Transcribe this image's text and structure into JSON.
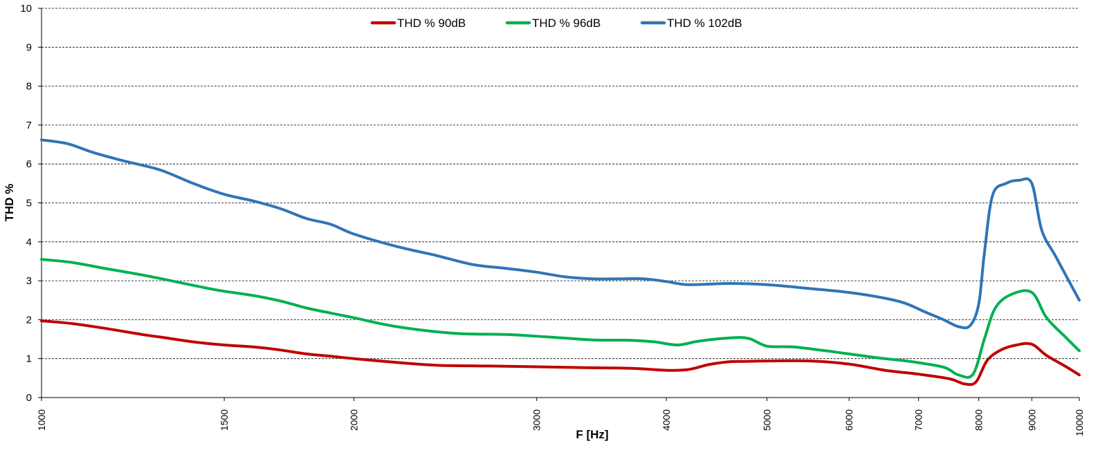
{
  "chart_data": {
    "type": "line",
    "title": "",
    "xlabel": "F [Hz]",
    "ylabel": "THD %",
    "x_scale": "log",
    "xlim": [
      1000,
      10000
    ],
    "ylim": [
      0,
      10
    ],
    "y_ticks": [
      "0",
      "1",
      "2",
      "3",
      "4",
      "5",
      "6",
      "7",
      "8",
      "9",
      "10"
    ],
    "x_ticks": [
      "1000",
      "1500",
      "2000",
      "3000",
      "4000",
      "5000",
      "6000",
      "7000",
      "8000",
      "9000",
      "10000"
    ],
    "grid": "horizontal dashed",
    "legend_position": "top-center",
    "series": [
      {
        "name": "THD % 90dB",
        "color": "#c00000",
        "points": [
          [
            1000,
            1.97
          ],
          [
            1070,
            1.9
          ],
          [
            1150,
            1.78
          ],
          [
            1250,
            1.62
          ],
          [
            1320,
            1.53
          ],
          [
            1400,
            1.43
          ],
          [
            1500,
            1.35
          ],
          [
            1600,
            1.3
          ],
          [
            1700,
            1.22
          ],
          [
            1800,
            1.12
          ],
          [
            1900,
            1.06
          ],
          [
            2000,
            1.0
          ],
          [
            2200,
            0.9
          ],
          [
            2400,
            0.83
          ],
          [
            2700,
            0.81
          ],
          [
            3000,
            0.79
          ],
          [
            3300,
            0.77
          ],
          [
            3700,
            0.75
          ],
          [
            4000,
            0.7
          ],
          [
            4200,
            0.72
          ],
          [
            4400,
            0.85
          ],
          [
            4600,
            0.92
          ],
          [
            4800,
            0.93
          ],
          [
            5000,
            0.94
          ],
          [
            5500,
            0.94
          ],
          [
            6000,
            0.86
          ],
          [
            6500,
            0.7
          ],
          [
            7000,
            0.6
          ],
          [
            7500,
            0.48
          ],
          [
            7750,
            0.35
          ],
          [
            7950,
            0.4
          ],
          [
            8150,
            0.95
          ],
          [
            8400,
            1.22
          ],
          [
            8700,
            1.35
          ],
          [
            9000,
            1.37
          ],
          [
            9300,
            1.08
          ],
          [
            9700,
            0.8
          ],
          [
            10000,
            0.58
          ]
        ]
      },
      {
        "name": "THD % 96dB",
        "color": "#00b050",
        "points": [
          [
            1000,
            3.55
          ],
          [
            1070,
            3.47
          ],
          [
            1150,
            3.32
          ],
          [
            1250,
            3.15
          ],
          [
            1350,
            2.97
          ],
          [
            1450,
            2.8
          ],
          [
            1500,
            2.73
          ],
          [
            1600,
            2.62
          ],
          [
            1700,
            2.48
          ],
          [
            1800,
            2.3
          ],
          [
            1900,
            2.17
          ],
          [
            2000,
            2.05
          ],
          [
            2200,
            1.82
          ],
          [
            2500,
            1.65
          ],
          [
            2800,
            1.62
          ],
          [
            3100,
            1.55
          ],
          [
            3400,
            1.48
          ],
          [
            3700,
            1.47
          ],
          [
            3900,
            1.43
          ],
          [
            4100,
            1.35
          ],
          [
            4300,
            1.45
          ],
          [
            4600,
            1.53
          ],
          [
            4800,
            1.52
          ],
          [
            5000,
            1.32
          ],
          [
            5300,
            1.3
          ],
          [
            5700,
            1.2
          ],
          [
            6000,
            1.12
          ],
          [
            6400,
            1.02
          ],
          [
            6900,
            0.92
          ],
          [
            7400,
            0.78
          ],
          [
            7650,
            0.58
          ],
          [
            7900,
            0.6
          ],
          [
            8100,
            1.5
          ],
          [
            8300,
            2.3
          ],
          [
            8600,
            2.65
          ],
          [
            9000,
            2.7
          ],
          [
            9300,
            2.05
          ],
          [
            9700,
            1.55
          ],
          [
            10000,
            1.2
          ]
        ]
      },
      {
        "name": "THD % 102dB",
        "color": "#2e75b6",
        "points": [
          [
            1000,
            6.62
          ],
          [
            1060,
            6.52
          ],
          [
            1120,
            6.3
          ],
          [
            1200,
            6.08
          ],
          [
            1300,
            5.85
          ],
          [
            1400,
            5.5
          ],
          [
            1500,
            5.22
          ],
          [
            1600,
            5.05
          ],
          [
            1700,
            4.85
          ],
          [
            1800,
            4.6
          ],
          [
            1900,
            4.45
          ],
          [
            2000,
            4.2
          ],
          [
            2200,
            3.88
          ],
          [
            2400,
            3.65
          ],
          [
            2600,
            3.42
          ],
          [
            2800,
            3.32
          ],
          [
            3000,
            3.22
          ],
          [
            3200,
            3.1
          ],
          [
            3400,
            3.05
          ],
          [
            3600,
            3.05
          ],
          [
            3800,
            3.05
          ],
          [
            4000,
            2.98
          ],
          [
            4200,
            2.9
          ],
          [
            4600,
            2.93
          ],
          [
            5000,
            2.9
          ],
          [
            5500,
            2.8
          ],
          [
            6000,
            2.7
          ],
          [
            6500,
            2.55
          ],
          [
            6800,
            2.42
          ],
          [
            7100,
            2.2
          ],
          [
            7400,
            2.0
          ],
          [
            7650,
            1.82
          ],
          [
            7850,
            1.85
          ],
          [
            8000,
            2.4
          ],
          [
            8100,
            3.7
          ],
          [
            8250,
            5.2
          ],
          [
            8500,
            5.5
          ],
          [
            8750,
            5.58
          ],
          [
            9000,
            5.5
          ],
          [
            9200,
            4.3
          ],
          [
            9500,
            3.6
          ],
          [
            10000,
            2.5
          ]
        ]
      }
    ]
  }
}
